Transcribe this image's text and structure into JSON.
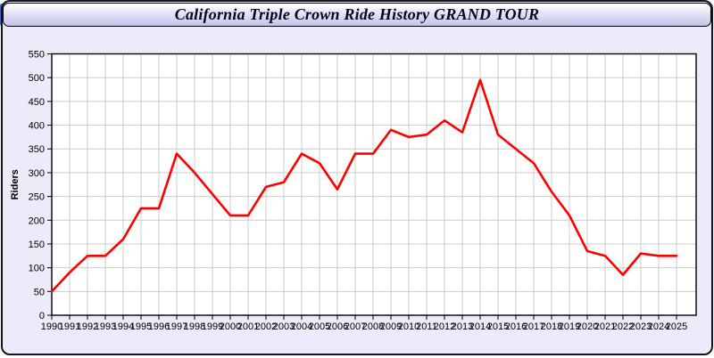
{
  "window": {
    "title": "California Triple Crown Ride History GRAND TOUR",
    "colors": {
      "content_bg": "#ecebf9",
      "titlebar_gradient_bottom": "#c3c3ea",
      "accent_sliver": "#4a67cf",
      "border": "#14141c"
    }
  },
  "chart_data": {
    "type": "line",
    "title": "California Triple Crown Ride History GRAND TOUR",
    "xlabel": "",
    "ylabel": "Riders",
    "ylim": [
      0,
      550
    ],
    "ytick_step": 50,
    "grid": true,
    "legend": "none",
    "plot_bg": "#ffffff",
    "grid_color": "#cccccc",
    "axis_color": "#000000",
    "x": [
      1990,
      1991,
      1992,
      1993,
      1994,
      1995,
      1996,
      1997,
      1998,
      1999,
      2000,
      2001,
      2002,
      2003,
      2004,
      2005,
      2006,
      2007,
      2008,
      2009,
      2010,
      2011,
      2012,
      2013,
      2014,
      2015,
      2016,
      2017,
      2018,
      2019,
      2020,
      2021,
      2022,
      2023,
      2024,
      2025
    ],
    "series": [
      {
        "name": "Riders",
        "color": "#ff0000",
        "values": [
          50,
          90,
          125,
          125,
          160,
          225,
          225,
          340,
          300,
          255,
          210,
          210,
          270,
          280,
          340,
          320,
          265,
          340,
          340,
          390,
          375,
          380,
          410,
          385,
          495,
          380,
          350,
          320,
          260,
          210,
          135,
          125,
          85,
          130,
          125,
          125
        ]
      }
    ]
  }
}
